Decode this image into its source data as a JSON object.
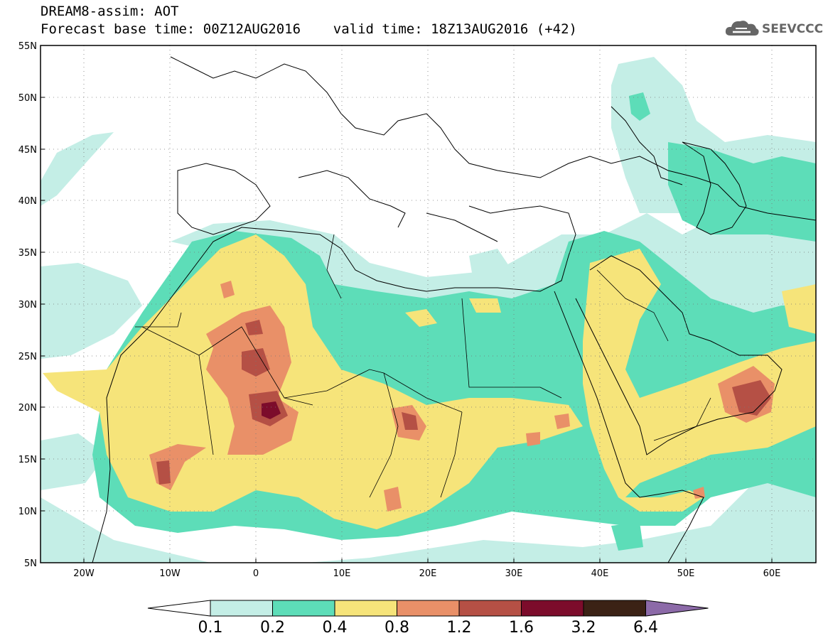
{
  "header": {
    "line1": "DREAM8-assim: AOT",
    "line2": "Forecast base time: 00Z12AUG2016    valid time: 18Z13AUG2016 (+42)",
    "logo_text": "SEEVCCC"
  },
  "chart_data": {
    "type": "heatmap",
    "variable": "AOT",
    "xlim": [
      -25,
      65
    ],
    "ylim": [
      5,
      55
    ],
    "lat_ticks": [
      "5N",
      "10N",
      "15N",
      "20N",
      "25N",
      "30N",
      "35N",
      "40N",
      "45N",
      "50N",
      "55N"
    ],
    "lon_ticks": [
      "20W",
      "10W",
      "0",
      "10E",
      "20E",
      "30E",
      "40E",
      "50E",
      "60E"
    ],
    "colorbar": {
      "levels": [
        "0.1",
        "0.2",
        "0.4",
        "0.8",
        "1.2",
        "1.6",
        "3.2",
        "6.4"
      ],
      "colors": [
        "#ffffff",
        "#c4eee6",
        "#5dddb8",
        "#f6e47a",
        "#e99068",
        "#b55045",
        "#7c0c2b",
        "#3b2215",
        "#8c6aa8"
      ]
    }
  }
}
